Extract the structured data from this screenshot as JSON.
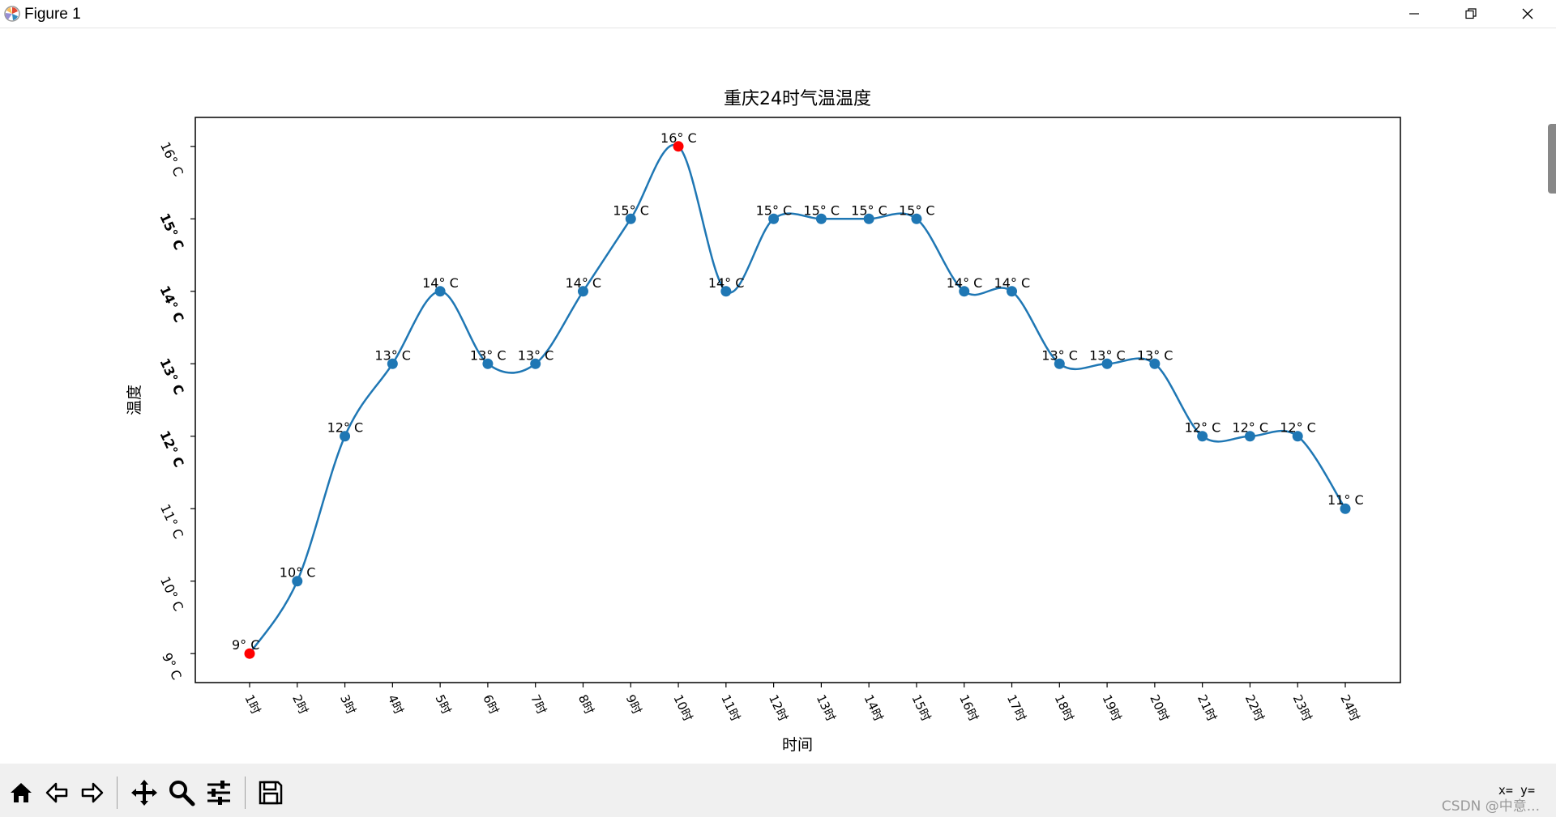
{
  "window": {
    "title": "Figure 1",
    "minimize_icon": "minimize-icon",
    "maximize_icon": "restore-icon",
    "close_icon": "close-icon"
  },
  "toolbar": {
    "buttons": [
      {
        "name": "home-button",
        "icon": "home-icon"
      },
      {
        "name": "back-button",
        "icon": "left-arrow-icon"
      },
      {
        "name": "forward-button",
        "icon": "right-arrow-icon"
      },
      {
        "name": "pan-button",
        "icon": "move-icon"
      },
      {
        "name": "zoom-button",
        "icon": "magnifier-icon"
      },
      {
        "name": "configure-subplots-button",
        "icon": "sliders-icon"
      },
      {
        "name": "save-button",
        "icon": "floppy-disk-icon"
      }
    ],
    "coordinates": "x= y=",
    "watermark": "CSDN @中意..."
  },
  "chart_data": {
    "type": "line",
    "title": "重庆24时气温温度",
    "xlabel": "时间",
    "ylabel": "温度",
    "categories": [
      "1时",
      "2时",
      "3时",
      "4时",
      "5时",
      "6时",
      "7时",
      "8时",
      "9时",
      "10时",
      "11时",
      "12时",
      "13时",
      "14时",
      "15时",
      "16时",
      "17时",
      "18时",
      "19时",
      "20时",
      "21时",
      "22时",
      "23时",
      "24时"
    ],
    "values": [
      9,
      10,
      12,
      13,
      14,
      13,
      13,
      14,
      15,
      16,
      14,
      15,
      15,
      15,
      15,
      14,
      14,
      13,
      13,
      13,
      12,
      12,
      12,
      11
    ],
    "ylim": [
      8.6,
      16.4
    ],
    "yticks": [
      9,
      10,
      11,
      12,
      13,
      14,
      15,
      16
    ],
    "ytick_labels": [
      "9° C",
      "10° C",
      "11° C",
      "12° C",
      "13° C",
      "14° C",
      "15° C",
      "16° C"
    ],
    "data_labels": [
      "9° C",
      "10° C",
      "12° C",
      "13° C",
      "14° C",
      "13° C",
      "13° C",
      "14° C",
      "15° C",
      "16° C",
      "14° C",
      "15° C",
      "15° C",
      "15° C",
      "15° C",
      "14° C",
      "14° C",
      "13° C",
      "13° C",
      "13° C",
      "12° C",
      "12° C",
      "12° C",
      "11° C"
    ],
    "highlight": {
      "min_index": 0,
      "max_index": 9,
      "color": "#ff0000"
    },
    "line_color": "#1f77b4",
    "smooth": true,
    "grid": false,
    "legend": "none"
  }
}
